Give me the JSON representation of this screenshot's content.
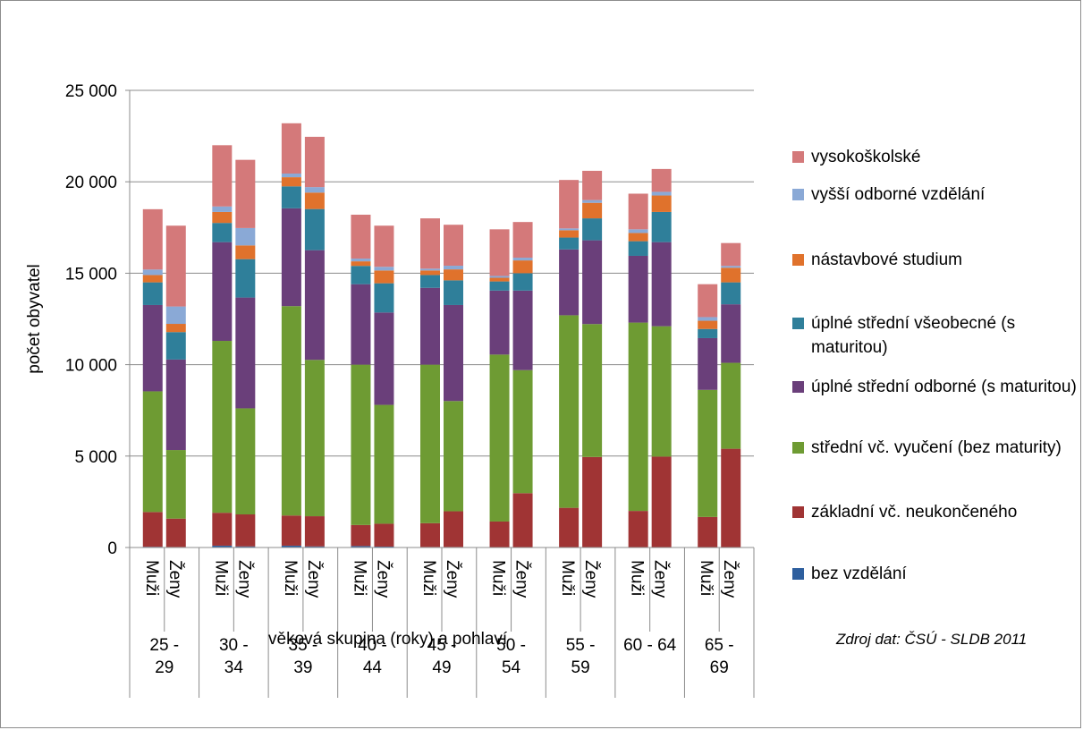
{
  "chart_data": {
    "type": "bar",
    "stacked": true,
    "ylabel": "počet obyvatel",
    "xlabel": "věková skupina (roky) a pohlaví",
    "source": "Zdroj dat: ČSÚ - SLDB 2011",
    "ylim": [
      0,
      25000
    ],
    "yticks": [
      0,
      5000,
      10000,
      15000,
      20000,
      25000
    ],
    "ytick_labels": [
      "0",
      "5 000",
      "10 000",
      "15 000",
      "20 000",
      "25 000"
    ],
    "grid": true,
    "legend_position": "right",
    "sexes": [
      "Muži",
      "Ženy"
    ],
    "groups": [
      "25 - 29",
      "30 - 34",
      "35 - 39",
      "40 - 44",
      "45 - 49",
      "50 - 54",
      "55 - 59",
      "60 - 64",
      "65 - 69"
    ],
    "group_labels": [
      [
        "25 -",
        "29"
      ],
      [
        "30 -",
        "34"
      ],
      [
        "35 -",
        "39"
      ],
      [
        "40 -",
        "44"
      ],
      [
        "45 -",
        "49"
      ],
      [
        "50 -",
        "54"
      ],
      [
        "55 -",
        "59"
      ],
      [
        "60 - 64"
      ],
      [
        "65 -",
        "69"
      ]
    ],
    "categories": [
      "25-29 Muži",
      "25-29 Ženy",
      "30-34 Muži",
      "30-34 Ženy",
      "35-39 Muži",
      "35-39 Ženy",
      "40-44 Muži",
      "40-44 Ženy",
      "45-49 Muži",
      "45-49 Ženy",
      "50-54 Muži",
      "50-54 Ženy",
      "55-59 Muži",
      "55-59 Ženy",
      "60-64 Muži",
      "60-64 Ženy",
      "65-69 Muži",
      "65-69 Ženy"
    ],
    "series": [
      {
        "name": "bez vzdělání",
        "color": "#2e5f9e",
        "values": [
          40,
          30,
          100,
          60,
          100,
          60,
          80,
          50,
          30,
          30,
          20,
          20,
          20,
          20,
          20,
          20,
          20,
          20
        ]
      },
      {
        "name": "základní vč. neukončeného",
        "color": "#a03434",
        "values": [
          1900,
          1550,
          1800,
          1750,
          1650,
          1650,
          1150,
          1250,
          1300,
          1950,
          1400,
          2950,
          2150,
          4930,
          1980,
          4950,
          1650,
          5380
        ]
      },
      {
        "name": "střední vč. vyučení (bez maturity)",
        "color": "#6e9b33",
        "values": [
          6600,
          3750,
          9400,
          5800,
          11450,
          8550,
          8770,
          6500,
          8670,
          6030,
          9130,
          6730,
          10530,
          7270,
          10300,
          7130,
          6950,
          4700
        ]
      },
      {
        "name": "úplné střední odborné (s maturitou)",
        "color": "#6a3f7a",
        "values": [
          4720,
          4950,
          5400,
          6060,
          5350,
          6000,
          4400,
          5050,
          4200,
          5250,
          3500,
          4350,
          3600,
          4580,
          3650,
          4600,
          2830,
          3200
        ]
      },
      {
        "name": "úplné střední všeobecné (s maturitou)",
        "color": "#2f7f9a",
        "values": [
          1240,
          1500,
          1050,
          2100,
          1200,
          2250,
          1000,
          1600,
          700,
          1350,
          500,
          950,
          650,
          1200,
          800,
          1650,
          500,
          1200
        ]
      },
      {
        "name": "nástavbové studium",
        "color": "#e0722c",
        "values": [
          400,
          450,
          600,
          750,
          500,
          900,
          250,
          700,
          250,
          600,
          200,
          700,
          400,
          850,
          450,
          900,
          450,
          800
        ]
      },
      {
        "name": "vyšší odborné vzdělání",
        "color": "#8aa9d6",
        "values": [
          300,
          950,
          300,
          950,
          200,
          300,
          150,
          200,
          100,
          200,
          100,
          150,
          100,
          150,
          200,
          200,
          200,
          100
        ]
      },
      {
        "name": "vysokoškolské",
        "color": "#d4797a",
        "values": [
          3300,
          4420,
          3350,
          3730,
          2750,
          2750,
          2400,
          2250,
          2750,
          2240,
          2550,
          1950,
          2650,
          1600,
          1950,
          1250,
          1800,
          1250
        ]
      }
    ]
  }
}
